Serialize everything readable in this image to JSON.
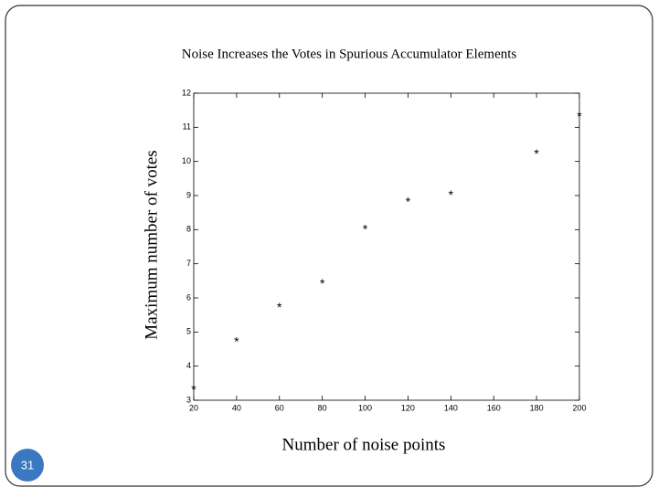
{
  "chart_data": {
    "type": "scatter",
    "title": "Noise Increases the Votes in Spurious Accumulator Elements",
    "xlabel": "Number of noise points",
    "ylabel": "Maximum number of votes",
    "x": [
      20,
      40,
      60,
      80,
      100,
      120,
      140,
      180,
      200
    ],
    "values": [
      3.4,
      4.8,
      5.8,
      6.5,
      8.1,
      8.9,
      9.1,
      10.3,
      11.4
    ],
    "marker": "*",
    "color": "#000000",
    "xlim": [
      20,
      200
    ],
    "xticks": [
      20,
      40,
      60,
      80,
      100,
      120,
      140,
      160,
      180,
      200
    ],
    "ylim": [
      3,
      12
    ],
    "yticks": [
      3,
      4,
      5,
      6,
      7,
      8,
      9,
      10,
      11,
      12
    ],
    "grid": false
  },
  "slide_number": "31"
}
